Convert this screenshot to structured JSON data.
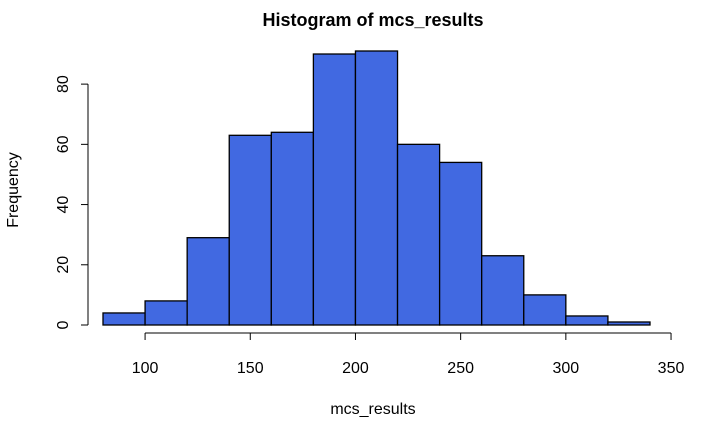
{
  "chart_data": {
    "type": "bar",
    "title": "Histogram of mcs_results",
    "xlabel": "mcs_results",
    "ylabel": "Frequency",
    "bins": [
      {
        "start": 80,
        "end": 100,
        "count": 4
      },
      {
        "start": 100,
        "end": 120,
        "count": 8
      },
      {
        "start": 120,
        "end": 140,
        "count": 29
      },
      {
        "start": 140,
        "end": 160,
        "count": 63
      },
      {
        "start": 160,
        "end": 180,
        "count": 64
      },
      {
        "start": 180,
        "end": 200,
        "count": 90
      },
      {
        "start": 200,
        "end": 220,
        "count": 91
      },
      {
        "start": 220,
        "end": 240,
        "count": 60
      },
      {
        "start": 240,
        "end": 260,
        "count": 54
      },
      {
        "start": 260,
        "end": 280,
        "count": 23
      },
      {
        "start": 280,
        "end": 300,
        "count": 10
      },
      {
        "start": 300,
        "end": 320,
        "count": 3
      },
      {
        "start": 320,
        "end": 340,
        "count": 1
      }
    ],
    "xticks": [
      100,
      150,
      200,
      250,
      300,
      350
    ],
    "yticks": [
      0,
      20,
      40,
      60,
      80
    ],
    "xlim": [
      80,
      350
    ],
    "ylim": [
      0,
      91
    ],
    "bar_color": "#4169E1",
    "bar_edge_color": "#000000",
    "grid": false,
    "legend": "none"
  }
}
